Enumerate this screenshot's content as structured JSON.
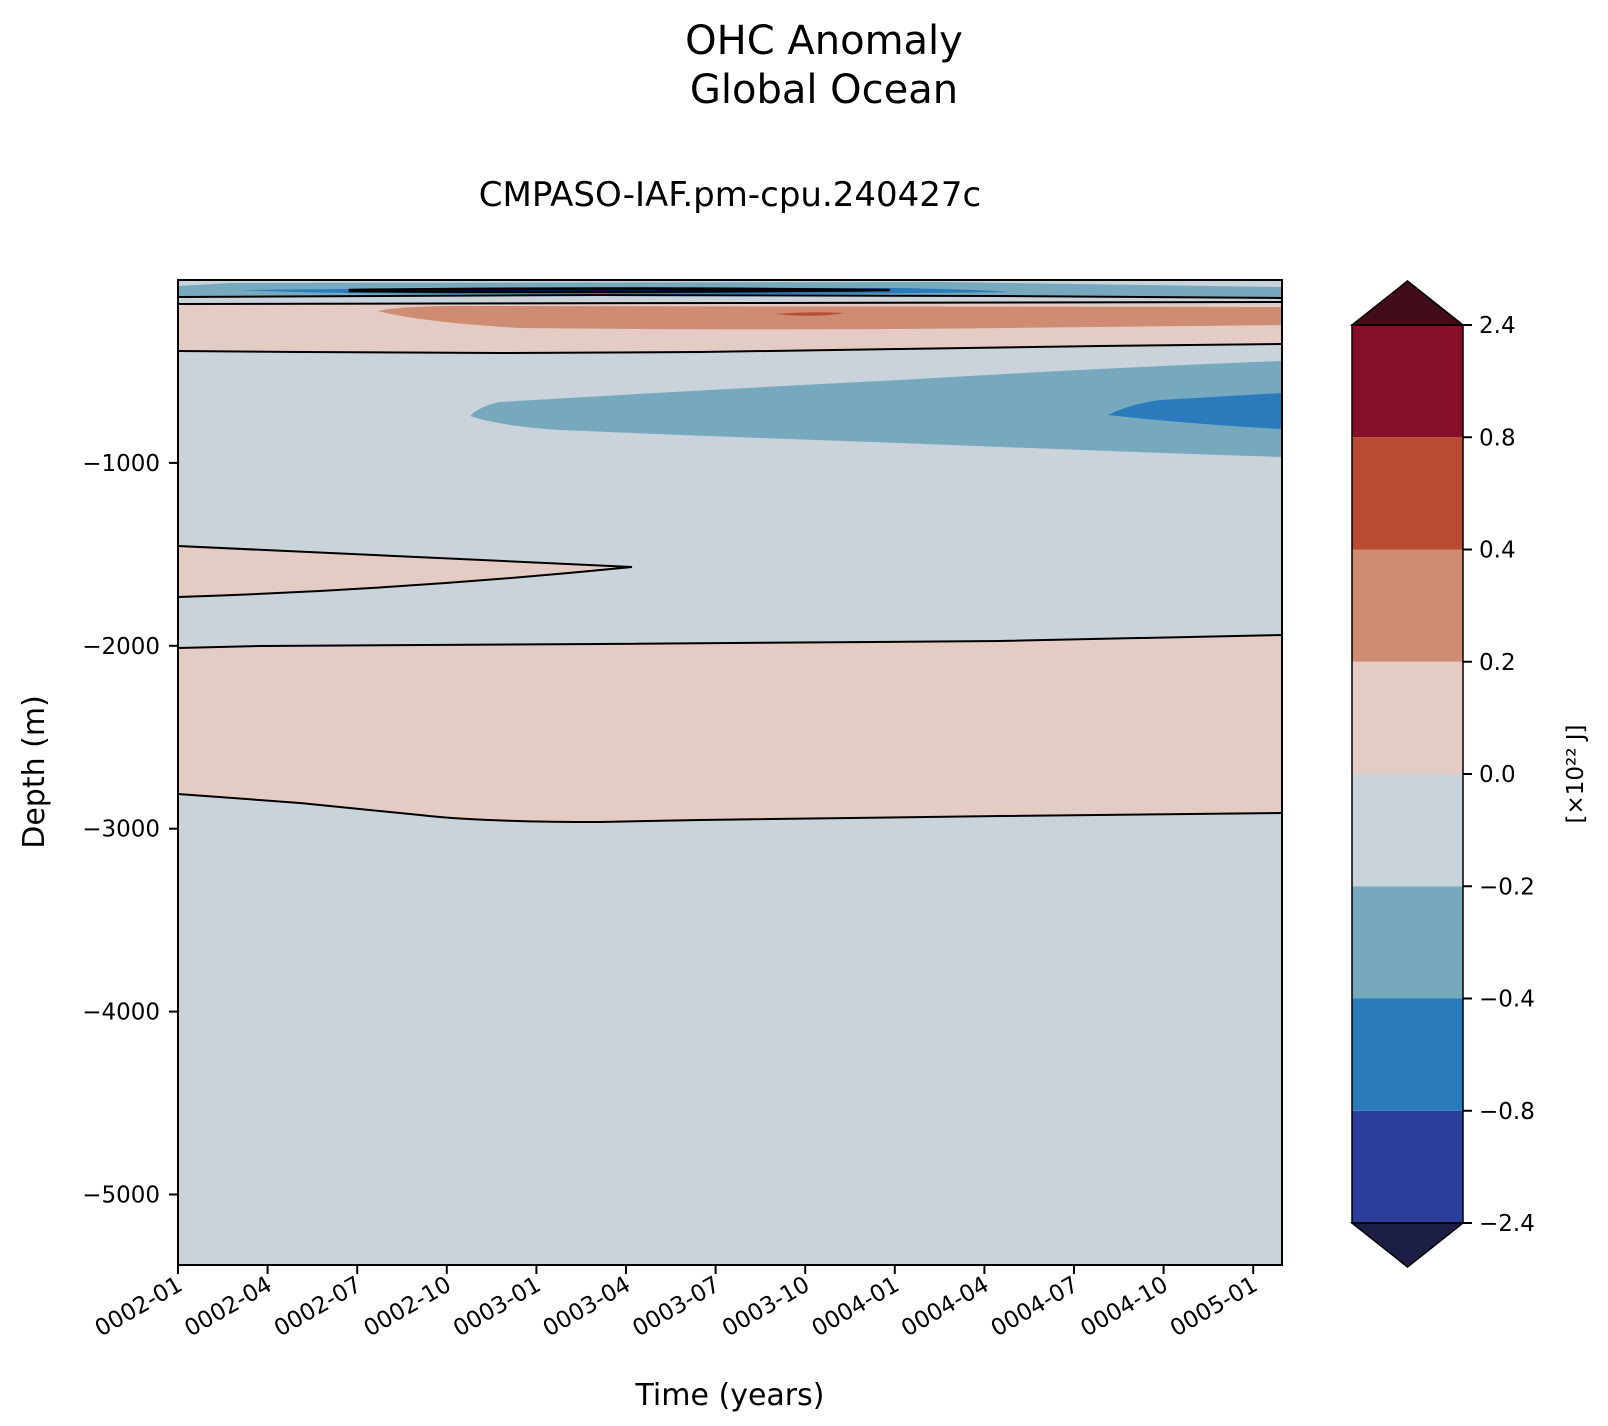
{
  "chart_data": {
    "type": "heatmap",
    "subtype": "filled-contour",
    "title": "OHC Anomaly\nGlobal Ocean",
    "subtitle": "CMPASO-IAF.pm-cpu.240427c",
    "xlabel": "Time (years)",
    "ylabel": "Depth (m)",
    "x_ticks": [
      "0002-01",
      "0002-04",
      "0002-07",
      "0002-10",
      "0003-01",
      "0003-04",
      "0003-07",
      "0003-10",
      "0004-01",
      "0004-04",
      "0004-07",
      "0004-10",
      "0005-01"
    ],
    "xlim": [
      "0002-01",
      "0005-01"
    ],
    "y_ticks": [
      -1000,
      -2000,
      -3000,
      -4000,
      -5000
    ],
    "ylim": [
      -5400,
      0
    ],
    "grid": false,
    "colorbar": {
      "label": "[×10²² J]",
      "levels": [
        -2.4,
        -0.8,
        -0.4,
        -0.2,
        0.0,
        0.2,
        0.4,
        0.8,
        2.4
      ],
      "tick_labels": [
        "−2.4",
        "−0.8",
        "−0.4",
        "−0.2",
        "0.0",
        "0.2",
        "0.4",
        "0.8",
        "2.4"
      ],
      "colors": [
        "#2a3e9a",
        "#2a7bbb",
        "#76a9be",
        "#cad2da",
        "#e4cbc4",
        "#ce8d72",
        "#b84b32",
        "#860e28"
      ],
      "under_color": "#1c1e45",
      "over_color": "#420d18",
      "extend": "both"
    },
    "regions": [
      {
        "range": [
          -0.2,
          0.0
        ],
        "description": "background, most of the column"
      },
      {
        "range": [
          0.0,
          0.2
        ],
        "depth_m": [
          -120,
          -400
        ],
        "description": "upper warm band"
      },
      {
        "range": [
          0.2,
          0.4
        ],
        "depth_m": [
          -150,
          -280
        ],
        "time": [
          "0002-07",
          "0005-01"
        ]
      },
      {
        "range": [
          0.4,
          0.8
        ],
        "depth_m": [
          -180,
          -190
        ],
        "time": [
          "0003-09",
          "0003-11"
        ]
      },
      {
        "range": [
          -0.4,
          -0.2
        ],
        "depth_m": [
          -450,
          -1000
        ],
        "time": [
          "0002-10",
          "0005-01"
        ]
      },
      {
        "range": [
          -0.8,
          -0.4
        ],
        "depth_m": [
          -620,
          -820
        ],
        "time": [
          "0004-08",
          "0005-01"
        ]
      },
      {
        "range": [
          0.0,
          0.2
        ],
        "depth_m": [
          -1460,
          -1740
        ],
        "time": [
          "0002-01",
          "0003-04"
        ]
      },
      {
        "range": [
          0.0,
          0.2
        ],
        "depth_m": [
          -1950,
          -2980
        ],
        "time": [
          "0002-01",
          "0005-01"
        ]
      },
      {
        "range": [
          -0.4,
          -0.2
        ],
        "depth_m": [
          0,
          -90
        ],
        "description": "near-surface cool layer"
      },
      {
        "range": [
          -0.8,
          -0.4
        ],
        "depth_m": [
          -40,
          -80
        ],
        "time": [
          "0002-03",
          "0004-05"
        ]
      }
    ]
  }
}
